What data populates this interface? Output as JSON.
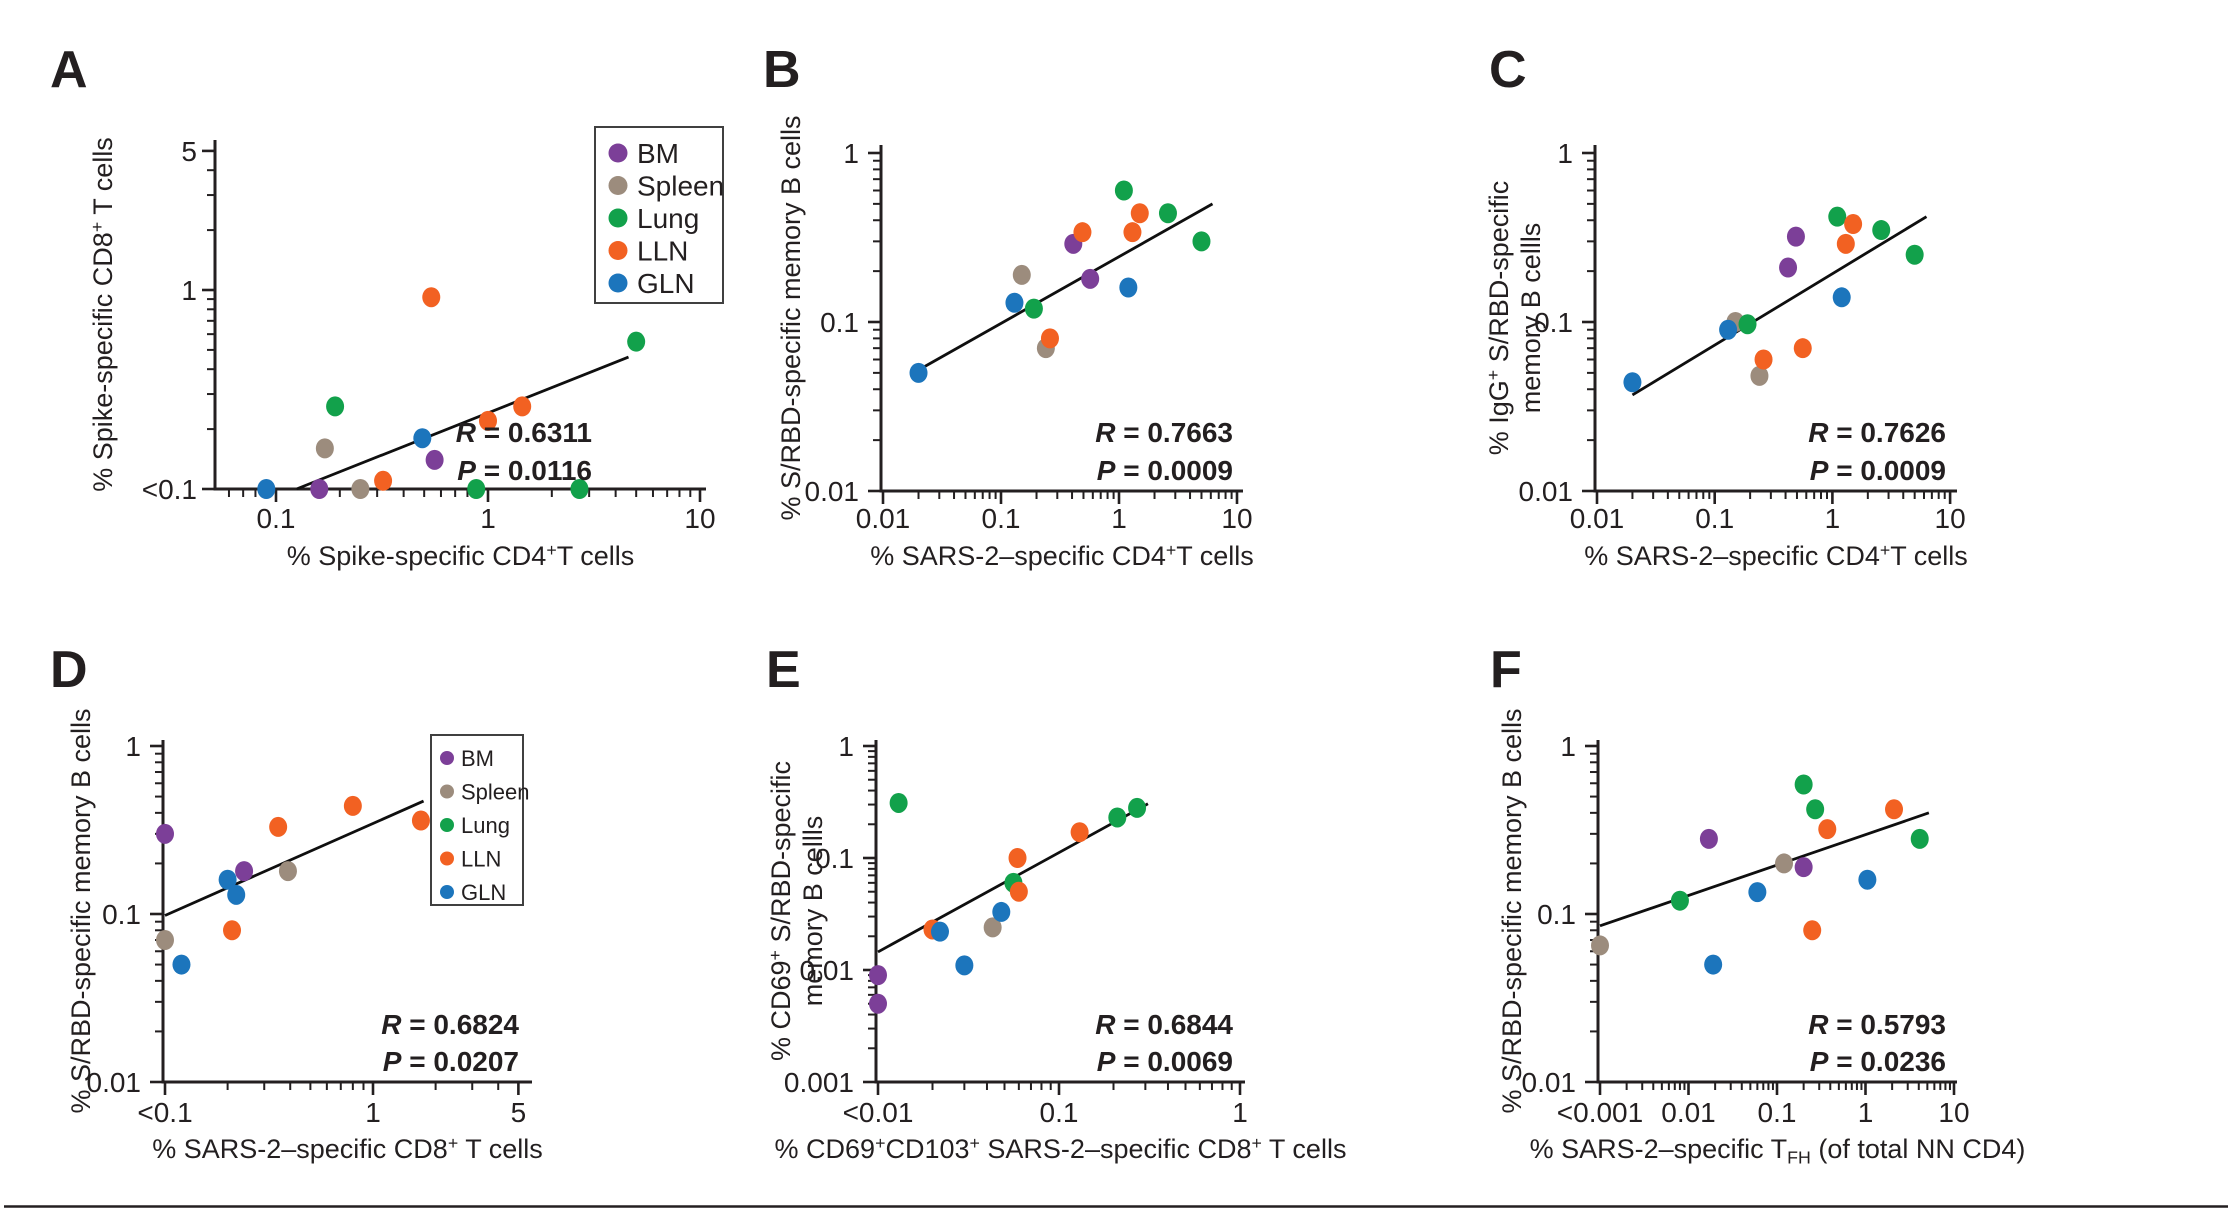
{
  "colors": {
    "background": "#ffffff",
    "axis": "#231f20",
    "stat_text": "#ec1b23",
    "legend_border": "#404040"
  },
  "legend": {
    "items": [
      {
        "name": "BM",
        "color": "#7c3f98"
      },
      {
        "name": "Spleen",
        "color": "#9c8c7d"
      },
      {
        "name": "Lung",
        "color": "#12a14b"
      },
      {
        "name": "LLN",
        "color": "#f26122"
      },
      {
        "name": "GLN",
        "color": "#1c75bc"
      }
    ]
  },
  "chart_data": [
    {
      "id": "A",
      "panel_label": "A",
      "type": "scatter",
      "xlabel": "% Spike-specific CD4^+^T cells",
      "ylabel_lines": [
        "% Spike-specific CD8^+^ T cells"
      ],
      "x_axis": {
        "log": true,
        "range": [
          0.052,
          11
        ],
        "cut": null,
        "ticks": [
          {
            "v": 0.1,
            "label": "0.1"
          },
          {
            "v": 1,
            "label": "1"
          },
          {
            "v": 10,
            "label": "10"
          }
        ]
      },
      "y_axis": {
        "log": true,
        "range": [
          0.1,
          5.7
        ],
        "cut": "<0.1",
        "ticks": [
          {
            "v": 5,
            "label": "5"
          },
          {
            "v": 1,
            "label": "1"
          },
          {
            "v": 0.1,
            "label": "<0.1"
          }
        ]
      },
      "stats": {
        "R": "0.6311",
        "P": "0.0116"
      },
      "trend_line": {
        "x1": 0.125,
        "y1": 0.1,
        "x2": 4.6,
        "y2": 0.46
      },
      "show_legend": true,
      "series": [
        {
          "name": "BM",
          "points": [
            [
              0.16,
              0.1
            ],
            [
              0.56,
              0.14
            ]
          ]
        },
        {
          "name": "Spleen",
          "points": [
            [
              0.17,
              0.16
            ],
            [
              0.25,
              0.1
            ]
          ]
        },
        {
          "name": "Lung",
          "points": [
            [
              0.19,
              0.26
            ],
            [
              0.88,
              0.1
            ],
            [
              2.7,
              0.1
            ],
            [
              5.0,
              0.55
            ]
          ]
        },
        {
          "name": "LLN",
          "points": [
            [
              0.32,
              0.11
            ],
            [
              0.54,
              0.92
            ],
            [
              1.0,
              0.22
            ],
            [
              1.45,
              0.26
            ]
          ]
        },
        {
          "name": "GLN",
          "points": [
            [
              0.09,
              0.1
            ],
            [
              0.49,
              0.18
            ]
          ]
        }
      ]
    },
    {
      "id": "B",
      "panel_label": "B",
      "type": "scatter",
      "xlabel": "% SARS-2–specific CD4^+^T cells",
      "ylabel_lines": [
        "% S/RBD-specific memory B cells"
      ],
      "x_axis": {
        "log": true,
        "range": [
          0.01,
          11
        ],
        "cut": null,
        "ticks": [
          {
            "v": 0.01,
            "label": "0.01"
          },
          {
            "v": 0.1,
            "label": "0.1"
          },
          {
            "v": 1,
            "label": "1"
          },
          {
            "v": 10,
            "label": "10"
          }
        ]
      },
      "y_axis": {
        "log": true,
        "range": [
          0.01,
          1.1
        ],
        "cut": null,
        "ticks": [
          {
            "v": 1,
            "label": "1"
          },
          {
            "v": 0.1,
            "label": "0.1"
          },
          {
            "v": 0.01,
            "label": "0.01"
          }
        ]
      },
      "stats": {
        "R": "0.7663",
        "P": "0.0009"
      },
      "trend_line": {
        "x1": 0.02,
        "y1": 0.052,
        "x2": 6.2,
        "y2": 0.5
      },
      "show_legend": false,
      "series": [
        {
          "name": "BM",
          "points": [
            [
              0.41,
              0.29
            ],
            [
              0.57,
              0.18
            ]
          ]
        },
        {
          "name": "Spleen",
          "points": [
            [
              0.15,
              0.19
            ],
            [
              0.24,
              0.07
            ]
          ]
        },
        {
          "name": "Lung",
          "points": [
            [
              0.19,
              0.12
            ],
            [
              1.1,
              0.6
            ],
            [
              2.6,
              0.44
            ],
            [
              5.0,
              0.3
            ]
          ]
        },
        {
          "name": "LLN",
          "points": [
            [
              0.26,
              0.08
            ],
            [
              0.49,
              0.34
            ],
            [
              1.3,
              0.34
            ],
            [
              1.5,
              0.44
            ]
          ]
        },
        {
          "name": "GLN",
          "points": [
            [
              0.02,
              0.05
            ],
            [
              0.13,
              0.13
            ],
            [
              1.2,
              0.16
            ]
          ]
        }
      ]
    },
    {
      "id": "C",
      "panel_label": "C",
      "type": "scatter",
      "xlabel": "% SARS-2–specific CD4^+^T cells",
      "ylabel_lines": [
        "% IgG^+^ S/RBD-specific",
        "memory B cellls"
      ],
      "x_axis": {
        "log": true,
        "range": [
          0.01,
          11
        ],
        "cut": null,
        "ticks": [
          {
            "v": 0.01,
            "label": "0.01"
          },
          {
            "v": 0.1,
            "label": "0.1"
          },
          {
            "v": 1,
            "label": "1"
          },
          {
            "v": 10,
            "label": "10"
          }
        ]
      },
      "y_axis": {
        "log": true,
        "range": [
          0.01,
          1.1
        ],
        "cut": null,
        "ticks": [
          {
            "v": 1,
            "label": "1"
          },
          {
            "v": 0.1,
            "label": "0.1"
          },
          {
            "v": 0.01,
            "label": "0.01"
          }
        ]
      },
      "stats": {
        "R": "0.7626",
        "P": "0.0009"
      },
      "trend_line": {
        "x1": 0.02,
        "y1": 0.037,
        "x2": 6.3,
        "y2": 0.42
      },
      "show_legend": false,
      "series": [
        {
          "name": "BM",
          "points": [
            [
              0.42,
              0.21
            ],
            [
              0.49,
              0.32
            ]
          ]
        },
        {
          "name": "Spleen",
          "points": [
            [
              0.15,
              0.1
            ],
            [
              0.24,
              0.048
            ]
          ]
        },
        {
          "name": "Lung",
          "points": [
            [
              0.19,
              0.097
            ],
            [
              1.1,
              0.42
            ],
            [
              2.6,
              0.35
            ],
            [
              5.0,
              0.25
            ]
          ]
        },
        {
          "name": "LLN",
          "points": [
            [
              0.26,
              0.06
            ],
            [
              0.56,
              0.07
            ],
            [
              1.3,
              0.29
            ],
            [
              1.5,
              0.38
            ]
          ]
        },
        {
          "name": "GLN",
          "points": [
            [
              0.02,
              0.044
            ],
            [
              0.13,
              0.09
            ],
            [
              1.2,
              0.14
            ]
          ]
        }
      ]
    },
    {
      "id": "D",
      "panel_label": "D",
      "type": "scatter",
      "xlabel": "% SARS-2–specific CD8^+^ T cells",
      "ylabel_lines": [
        "% S/RBD-specific memory B cells"
      ],
      "x_axis": {
        "log": true,
        "range": [
          0.098,
          5.8
        ],
        "cut": "<0.1",
        "ticks": [
          {
            "v": 0.1,
            "label": "<0.1"
          },
          {
            "v": 1,
            "label": "1"
          },
          {
            "v": 5,
            "label": "5"
          }
        ]
      },
      "y_axis": {
        "log": true,
        "range": [
          0.01,
          1.1
        ],
        "cut": null,
        "ticks": [
          {
            "v": 1,
            "label": "1"
          },
          {
            "v": 0.1,
            "label": "0.1"
          },
          {
            "v": 0.01,
            "label": "0.01"
          }
        ]
      },
      "stats": {
        "R": "0.6824",
        "P": "0.0207"
      },
      "trend_line": {
        "x1": 0.1,
        "y1": 0.098,
        "x2": 1.75,
        "y2": 0.47
      },
      "show_legend": true,
      "series": [
        {
          "name": "BM",
          "points": [
            [
              0.1,
              0.3
            ],
            [
              0.24,
              0.18
            ]
          ]
        },
        {
          "name": "Spleen",
          "points": [
            [
              0.1,
              0.07
            ],
            [
              0.39,
              0.18
            ]
          ]
        },
        {
          "name": "Lung",
          "points": []
        },
        {
          "name": "LLN",
          "points": [
            [
              0.21,
              0.08
            ],
            [
              0.35,
              0.33
            ],
            [
              0.8,
              0.44
            ],
            [
              1.7,
              0.36
            ]
          ]
        },
        {
          "name": "GLN",
          "points": [
            [
              0.12,
              0.05
            ],
            [
              0.2,
              0.16
            ],
            [
              0.22,
              0.13
            ]
          ]
        }
      ]
    },
    {
      "id": "E",
      "panel_label": "E",
      "type": "scatter",
      "xlabel": "% CD69^+^CD103^+^ SARS-2–specific CD8^+^ T cells",
      "ylabel_lines": [
        "% CD69^+^ S/RBD-specific",
        "memory B cellls"
      ],
      "x_axis": {
        "log": true,
        "range": [
          0.0097,
          1.07
        ],
        "cut": "<0.01",
        "ticks": [
          {
            "v": 0.01,
            "label": "<0.01"
          },
          {
            "v": 0.1,
            "label": "0.1"
          },
          {
            "v": 1,
            "label": "1"
          }
        ]
      },
      "y_axis": {
        "log": true,
        "range": [
          0.001,
          1.1
        ],
        "cut": null,
        "ticks": [
          {
            "v": 1,
            "label": "1"
          },
          {
            "v": 0.1,
            "label": "0.1"
          },
          {
            "v": 0.01,
            "label": "0.01"
          },
          {
            "v": 0.001,
            "label": "0.001"
          }
        ]
      },
      "stats": {
        "R": "0.6844",
        "P": "0.0069"
      },
      "trend_line": {
        "x1": 0.01,
        "y1": 0.0145,
        "x2": 0.31,
        "y2": 0.305
      },
      "show_legend": false,
      "series": [
        {
          "name": "BM",
          "points": [
            [
              0.01,
              0.009
            ],
            [
              0.01,
              0.005
            ]
          ]
        },
        {
          "name": "Spleen",
          "points": [
            [
              0.043,
              0.024
            ]
          ]
        },
        {
          "name": "Lung",
          "points": [
            [
              0.013,
              0.31
            ],
            [
              0.056,
              0.06
            ],
            [
              0.21,
              0.23
            ],
            [
              0.27,
              0.28
            ]
          ]
        },
        {
          "name": "LLN",
          "points": [
            [
              0.02,
              0.023
            ],
            [
              0.059,
              0.1
            ],
            [
              0.06,
              0.05
            ],
            [
              0.13,
              0.17
            ]
          ]
        },
        {
          "name": "GLN",
          "points": [
            [
              0.022,
              0.022
            ],
            [
              0.03,
              0.011
            ],
            [
              0.048,
              0.033
            ]
          ]
        }
      ]
    },
    {
      "id": "F",
      "panel_label": "F",
      "type": "scatter",
      "xlabel": "% SARS-2–specific T~FH~ (of total NN CD4)",
      "ylabel_lines": [
        "% S/RBD-specific memory B cells"
      ],
      "x_axis": {
        "log": true,
        "range": [
          0.001,
          10.2
        ],
        "cut": "<0.001",
        "ticks": [
          {
            "v": 0.001,
            "label": "<0.001"
          },
          {
            "v": 0.01,
            "label": "0.01"
          },
          {
            "v": 0.1,
            "label": "0.1"
          },
          {
            "v": 1,
            "label": "1"
          },
          {
            "v": 10,
            "label": "10"
          }
        ]
      },
      "y_axis": {
        "log": true,
        "range": [
          0.01,
          1.1
        ],
        "cut": null,
        "ticks": [
          {
            "v": 1,
            "label": "1"
          },
          {
            "v": 0.1,
            "label": "0.1"
          },
          {
            "v": 0.01,
            "label": "0.01"
          }
        ]
      },
      "stats": {
        "R": "0.5793",
        "P": "0.0236"
      },
      "trend_line": {
        "x1": 0.001,
        "y1": 0.085,
        "x2": 5.2,
        "y2": 0.4
      },
      "show_legend": false,
      "series": [
        {
          "name": "BM",
          "points": [
            [
              0.017,
              0.28
            ],
            [
              0.2,
              0.19
            ]
          ]
        },
        {
          "name": "Spleen",
          "points": [
            [
              0.001,
              0.065
            ],
            [
              0.12,
              0.2
            ]
          ]
        },
        {
          "name": "Lung",
          "points": [
            [
              0.008,
              0.12
            ],
            [
              0.2,
              0.59
            ],
            [
              0.27,
              0.42
            ],
            [
              4.1,
              0.28
            ]
          ]
        },
        {
          "name": "LLN",
          "points": [
            [
              0.25,
              0.08
            ],
            [
              0.37,
              0.32
            ],
            [
              2.1,
              0.42
            ]
          ]
        },
        {
          "name": "GLN",
          "points": [
            [
              0.019,
              0.05
            ],
            [
              0.06,
              0.135
            ],
            [
              1.05,
              0.16
            ]
          ]
        }
      ]
    }
  ]
}
